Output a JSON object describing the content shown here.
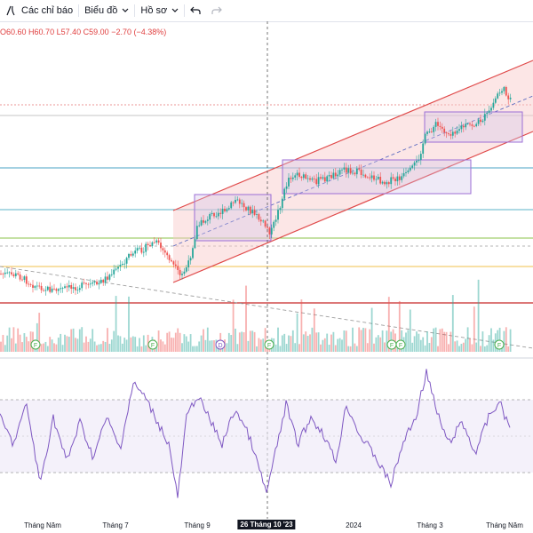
{
  "toolbar": {
    "indicators_label": "Các chỉ báo",
    "chart_label": "Biểu đồ",
    "profile_label": "Hồ sơ"
  },
  "legend": {
    "open": "O60.60",
    "high": "H60.70",
    "low": "L57.40",
    "close": "C59.00",
    "change": "−2.70 (−4.38%)"
  },
  "colors": {
    "up": "#26a69a",
    "down": "#ef5350",
    "channel": "#e04a4a",
    "rsi": "#7e57c2",
    "box": "#9c6fd6"
  },
  "markers": {
    "dividend": "F",
    "earnings": "D"
  },
  "xaxis": {
    "labels": [
      "Tháng Năm",
      "Tháng 7",
      "Tháng 9",
      "Tháng 3",
      "Tháng Năm"
    ],
    "year_label": "2024",
    "crosshair_label": "26 Tháng 10 '23"
  }
}
